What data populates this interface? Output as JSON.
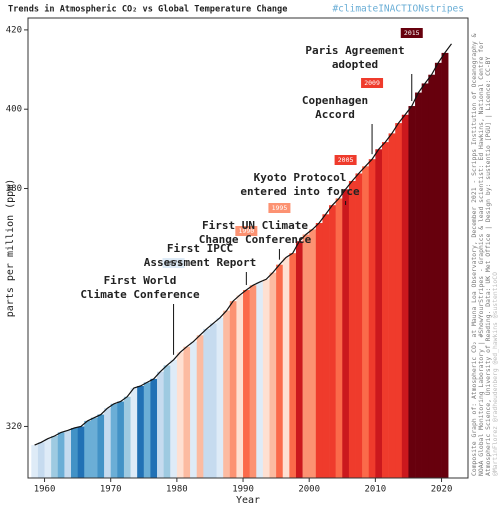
{
  "chart_data": {
    "type": "line",
    "title": "Trends in Atmospheric CO₂ vs Global Temperature Change",
    "subtitle": "#climateINACTIONstripes",
    "x_label": "Year",
    "y_label": "parts per million (ppm)",
    "x": [
      1958,
      1959,
      1960,
      1961,
      1962,
      1963,
      1964,
      1965,
      1966,
      1967,
      1968,
      1969,
      1970,
      1971,
      1972,
      1973,
      1974,
      1975,
      1976,
      1977,
      1978,
      1979,
      1980,
      1981,
      1982,
      1983,
      1984,
      1985,
      1986,
      1987,
      1988,
      1989,
      1990,
      1991,
      1992,
      1993,
      1994,
      1995,
      1996,
      1997,
      1998,
      1999,
      2000,
      2001,
      2002,
      2003,
      2004,
      2005,
      2006,
      2007,
      2008,
      2009,
      2010,
      2011,
      2012,
      2013,
      2014,
      2015,
      2016,
      2017,
      2018,
      2019,
      2020,
      2021
    ],
    "series": [
      {
        "color": "#111111",
        "values": [
          315.3,
          316.0,
          316.9,
          317.6,
          318.5,
          319.0,
          319.6,
          320.0,
          321.4,
          322.2,
          323.0,
          324.6,
          325.7,
          326.3,
          327.5,
          329.7,
          330.2,
          331.1,
          332.0,
          333.8,
          335.4,
          336.8,
          338.7,
          340.1,
          341.4,
          343.0,
          344.6,
          346.0,
          347.4,
          349.2,
          351.6,
          353.1,
          354.4,
          355.6,
          356.4,
          357.1,
          358.8,
          360.8,
          362.6,
          363.7,
          366.7,
          368.4,
          369.7,
          371.3,
          373.5,
          375.8,
          377.5,
          379.8,
          381.9,
          383.8,
          385.6,
          387.4,
          389.9,
          391.7,
          393.9,
          396.5,
          398.6,
          400.8,
          404.2,
          406.5,
          408.7,
          411.7,
          414.2,
          416.5
        ],
        "stripe_colors": [
          "#deebf7",
          "#c6dbef",
          "#deebf7",
          "#9ecae1",
          "#6baed6",
          "#c6dbef",
          "#4292c6",
          "#2171b5",
          "#6baed6",
          "#6baed6",
          "#4292c6",
          "#c6dbef",
          "#6baed6",
          "#4292c6",
          "#9ecae1",
          "#deebf7",
          "#2171b5",
          "#6baed6",
          "#2171b5",
          "#c6dbef",
          "#9ecae1",
          "#deebf7",
          "#fee0d2",
          "#fcbba1",
          "#deebf7",
          "#fcbba1",
          "#c6dbef",
          "#c6dbef",
          "#deebf7",
          "#fcbba1",
          "#fc9272",
          "#fee0d2",
          "#fb6a4a",
          "#fc9272",
          "#deebf7",
          "#fee0d2",
          "#fcbba1",
          "#fb6a4a",
          "#fee0d2",
          "#fb6a4a",
          "#cb181d",
          "#fc9272",
          "#fc9272",
          "#ef3b2c",
          "#ef3b2c",
          "#ef3b2c",
          "#fb6a4a",
          "#cb181d",
          "#ef3b2c",
          "#ef3b2c",
          "#fb6a4a",
          "#ef3b2c",
          "#cb181d",
          "#ef3b2c",
          "#ef3b2c",
          "#ef3b2c",
          "#cb181d",
          "#67000d",
          "#67000d",
          "#67000d",
          "#67000d",
          "#67000d",
          "#67000d",
          null
        ]
      }
    ],
    "xlim": [
      1957.5,
      2024
    ],
    "ylim": [
      307,
      423
    ],
    "xticks": [
      1960,
      1970,
      1980,
      1990,
      2000,
      2010,
      2020
    ],
    "yticks": [
      320,
      380,
      400,
      420
    ],
    "annotations": [
      {
        "year": 1979,
        "color": "#deebf7",
        "text": [
          "First World",
          "Climate Conference"
        ]
      },
      {
        "year": 1990,
        "color": "#fc9272",
        "text": [
          "First IPCC",
          "Assessment Report"
        ]
      },
      {
        "year": 1995,
        "color": "#fc9272",
        "text": [
          "First UN Climate",
          "Change Conference"
        ]
      },
      {
        "year": 2005,
        "color": "#ef3b2c",
        "text": [
          "Kyoto Protocol",
          "entered into force"
        ]
      },
      {
        "year": 2009,
        "color": "#ef3b2c",
        "text": [
          "Copenhagen",
          "Accord"
        ]
      },
      {
        "year": 2015,
        "color": "#67000d",
        "text": [
          "Paris Agreement",
          "adopted"
        ]
      }
    ],
    "credits": [
      "Composite Graph of: Atmospheric CO₂ at Mauna Loa Observatory, December 2021 - Scripps Institution of Oceanography &",
      "NOAA Global Monitoring Laboratory | #ShowYourStripes - Graphics & lead scientist: Ed Hawkins, National Centre for",
      "Atmospheric Science, University of Reading. Data: UK Met Office | Design by: sustentio [PGU] | Licence: CC-BY",
      "@MartinFlorez @radheudenberg @ed_hawkins @sustentioCO"
    ]
  }
}
